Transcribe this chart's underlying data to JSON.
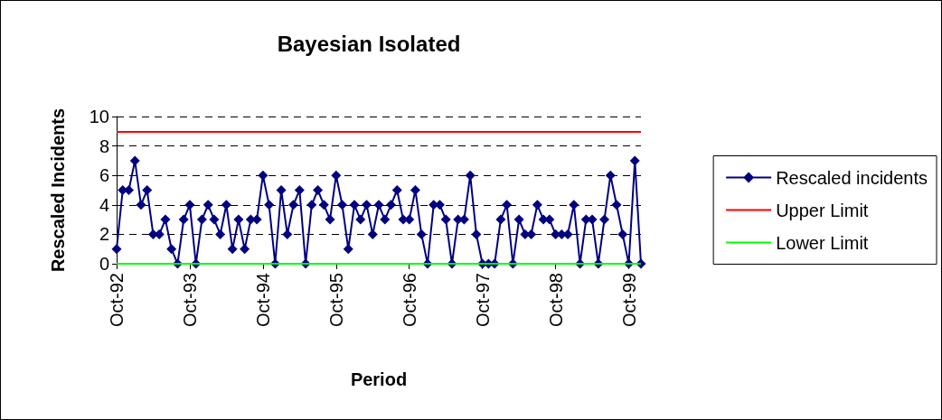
{
  "chart_data": {
    "type": "line",
    "title": "Bayesian Isolated",
    "xlabel": "Period",
    "ylabel": "Rescaled Incidents",
    "categories": [
      "Oct-92",
      null,
      null,
      null,
      null,
      null,
      null,
      null,
      null,
      null,
      null,
      null,
      "Oct-93",
      null,
      null,
      null,
      null,
      null,
      null,
      null,
      null,
      null,
      null,
      null,
      "Oct-94",
      null,
      null,
      null,
      null,
      null,
      null,
      null,
      null,
      null,
      null,
      null,
      "Oct-95",
      null,
      null,
      null,
      null,
      null,
      null,
      null,
      null,
      null,
      null,
      null,
      "Oct-96",
      null,
      null,
      null,
      null,
      null,
      null,
      null,
      null,
      null,
      null,
      null,
      "Oct-97",
      null,
      null,
      null,
      null,
      null,
      null,
      null,
      null,
      null,
      null,
      null,
      "Oct-98",
      null,
      null,
      null,
      null,
      null,
      null,
      null,
      null,
      null,
      null,
      null,
      "Oct-99",
      null,
      null
    ],
    "series": [
      {
        "name": "Rescaled incidents",
        "color": "#000080",
        "values": [
          1,
          5,
          5,
          7,
          4,
          5,
          2,
          2,
          3,
          1,
          0,
          3,
          4,
          0,
          3,
          4,
          3,
          2,
          4,
          1,
          3,
          1,
          3,
          3,
          6,
          4,
          0,
          5,
          2,
          4,
          5,
          0,
          4,
          5,
          4,
          3,
          6,
          4,
          1,
          4,
          3,
          4,
          2,
          4,
          3,
          4,
          5,
          3,
          3,
          5,
          2,
          0,
          4,
          4,
          3,
          0,
          3,
          3,
          6,
          2,
          0,
          0,
          0,
          3,
          4,
          0,
          3,
          2,
          2,
          4,
          3,
          3,
          2,
          2,
          2,
          4,
          0,
          3,
          3,
          0,
          3,
          6,
          4,
          2,
          0,
          7,
          0
        ]
      }
    ],
    "ref_lines": [
      {
        "axis": "y",
        "value": 9,
        "label": "Upper Limit",
        "color": "#ff0000"
      },
      {
        "axis": "y",
        "value": 0,
        "label": "Lower Limit",
        "color": "#00ff00"
      }
    ],
    "ylim": [
      0,
      10
    ],
    "yticks": [
      0,
      2,
      4,
      6,
      8,
      10
    ],
    "grid": "y",
    "legend": "right",
    "marker": "diamond",
    "line_style": "solid"
  }
}
